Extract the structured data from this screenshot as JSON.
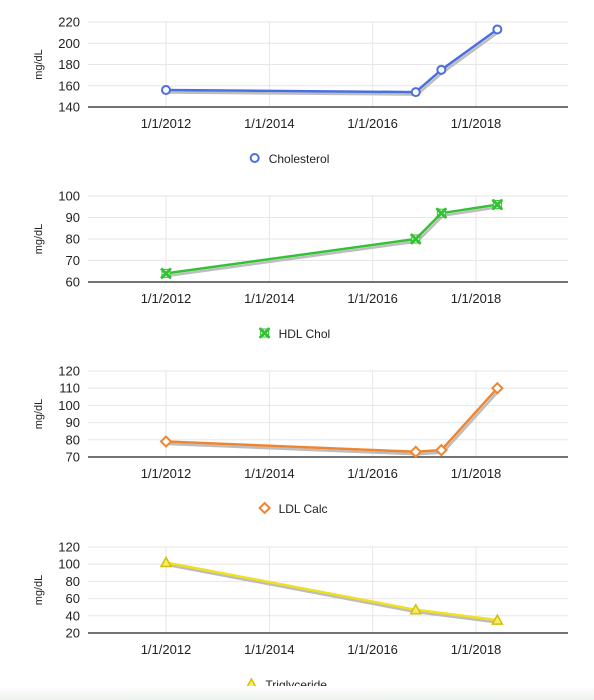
{
  "chart_data": [
    {
      "type": "line",
      "ylabel": "mg/dL",
      "ylim": [
        140,
        220
      ],
      "yticks": [
        140,
        160,
        180,
        200,
        220
      ],
      "x_ticks": [
        "1/1/2012",
        "1/1/2014",
        "1/1/2016",
        "1/1/2018"
      ],
      "grid": true,
      "legend_position": "bottom-center",
      "series": [
        {
          "name": "Cholesterol",
          "color": "#4a6fe0",
          "marker": "circle",
          "x": [
            "1/1/2012",
            "11/1/2016",
            "5/1/2017",
            "6/1/2018"
          ],
          "values": [
            156,
            154,
            175,
            213
          ]
        }
      ]
    },
    {
      "type": "line",
      "ylabel": "mg/dL",
      "ylim": [
        60,
        100
      ],
      "yticks": [
        60,
        70,
        80,
        90,
        100
      ],
      "x_ticks": [
        "1/1/2012",
        "1/1/2014",
        "1/1/2016",
        "1/1/2018"
      ],
      "grid": true,
      "legend_position": "bottom-center",
      "series": [
        {
          "name": "HDL Chol",
          "color": "#33c233",
          "marker": "x",
          "x": [
            "1/1/2012",
            "11/1/2016",
            "5/1/2017",
            "6/1/2018"
          ],
          "values": [
            64,
            80,
            92,
            96
          ]
        }
      ]
    },
    {
      "type": "line",
      "ylabel": "mg/dL",
      "ylim": [
        70,
        120
      ],
      "yticks": [
        70,
        80,
        90,
        100,
        110,
        120
      ],
      "x_ticks": [
        "1/1/2012",
        "1/1/2014",
        "1/1/2016",
        "1/1/2018"
      ],
      "grid": true,
      "legend_position": "bottom-center",
      "series": [
        {
          "name": "LDL Calc",
          "color": "#ef8530",
          "marker": "diamond",
          "x": [
            "1/1/2012",
            "11/1/2016",
            "5/1/2017",
            "6/1/2018"
          ],
          "values": [
            79,
            73,
            74,
            110
          ]
        }
      ]
    },
    {
      "type": "line",
      "ylabel": "mg/dL",
      "ylim": [
        20,
        120
      ],
      "yticks": [
        20,
        40,
        60,
        80,
        100,
        120
      ],
      "x_ticks": [
        "1/1/2012",
        "1/1/2014",
        "1/1/2016",
        "1/1/2018"
      ],
      "grid": true,
      "legend_position": "bottom-center",
      "series": [
        {
          "name": "Triglyceride",
          "color": "#f0e020",
          "marker": "triangle",
          "x": [
            "1/1/2012",
            "11/1/2016",
            "6/1/2018"
          ],
          "values": [
            102,
            47,
            35
          ]
        }
      ]
    }
  ]
}
